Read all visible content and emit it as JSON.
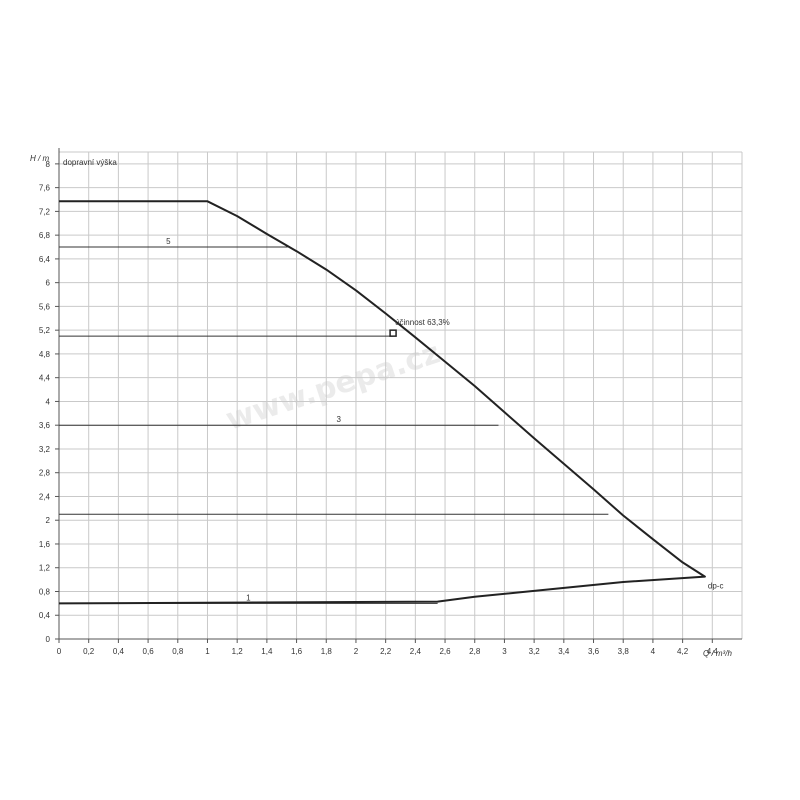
{
  "colors": {
    "curve": "#222222",
    "grid": "#c9c9c9",
    "axis": "#555555",
    "operating_line": "#333333",
    "watermark": "#dcdcdc"
  },
  "chart_data": {
    "type": "line",
    "title": "",
    "ylabel_symbol": "H / m",
    "ylabel_text": "dopravní  výška",
    "xlabel": "Q / m³/h",
    "xlim": [
      0,
      4.6
    ],
    "ylim": [
      0,
      8.2
    ],
    "grid": true,
    "x_ticks": [
      0,
      0.2,
      0.4,
      0.6,
      0.8,
      1,
      1.2,
      1.4,
      1.6,
      1.8,
      2,
      2.2,
      2.4,
      2.6,
      2.8,
      3,
      3.2,
      3.4,
      3.6,
      3.8,
      4,
      4.2,
      4.4
    ],
    "x_tick_labels": [
      "0",
      "0,2",
      "0,4",
      "0,6",
      "0,8",
      "1",
      "1,2",
      "1,4",
      "1,6",
      "1,8",
      "2",
      "2,2",
      "2,4",
      "2,6",
      "2,8",
      "3",
      "3,2",
      "3,4",
      "3,6",
      "3,8",
      "4",
      "4,2",
      "4,4"
    ],
    "y_ticks": [
      0,
      0.4,
      0.8,
      1.2,
      1.6,
      2,
      2.4,
      2.8,
      3.2,
      3.6,
      4,
      4.4,
      4.8,
      5.2,
      5.6,
      6,
      6.4,
      6.8,
      7.2,
      7.6,
      8
    ],
    "y_tick_labels": [
      "0",
      "0,4",
      "0,8",
      "1,2",
      "1,6",
      "2",
      "2,4",
      "2,8",
      "3,2",
      "3,6",
      "4",
      "4,4",
      "4,8",
      "5,2",
      "5,6",
      "6",
      "6,4",
      "6,8",
      "7,2",
      "7,6",
      "8"
    ],
    "series": [
      {
        "name": "",
        "points": [
          [
            0,
            7.37
          ],
          [
            1.0,
            7.37
          ],
          [
            1.2,
            7.12
          ],
          [
            1.4,
            6.82
          ],
          [
            1.6,
            6.53
          ],
          [
            1.8,
            6.22
          ],
          [
            2.0,
            5.87
          ],
          [
            2.2,
            5.48
          ],
          [
            2.4,
            5.08
          ],
          [
            2.6,
            4.67
          ],
          [
            2.8,
            4.26
          ],
          [
            3.0,
            3.82
          ],
          [
            3.2,
            3.38
          ],
          [
            3.4,
            2.95
          ],
          [
            3.6,
            2.52
          ],
          [
            3.8,
            2.08
          ],
          [
            4.0,
            1.68
          ],
          [
            4.2,
            1.29
          ],
          [
            4.35,
            1.05
          ],
          [
            3.8,
            0.96
          ],
          [
            3.2,
            0.81
          ],
          [
            2.8,
            0.71
          ],
          [
            2.55,
            0.63
          ],
          [
            0,
            0.6
          ]
        ]
      }
    ],
    "operating_lines": [
      {
        "label": "5",
        "h": 6.6,
        "q_end": 1.54
      },
      {
        "label": "",
        "h": 5.1,
        "q_end": 2.25
      },
      {
        "label": "3",
        "h": 3.6,
        "q_end": 2.96
      },
      {
        "label": "",
        "h": 2.1,
        "q_end": 3.7
      },
      {
        "label": "1",
        "h": 0.6,
        "q_end": 2.55
      }
    ],
    "efficiency_point": {
      "q": 2.25,
      "h": 5.15,
      "label": "účinnost  63,3%"
    },
    "end_label": {
      "q": 4.35,
      "h": 1.05,
      "text": "dp-c"
    }
  },
  "watermark_text": "www.pepa.cz"
}
